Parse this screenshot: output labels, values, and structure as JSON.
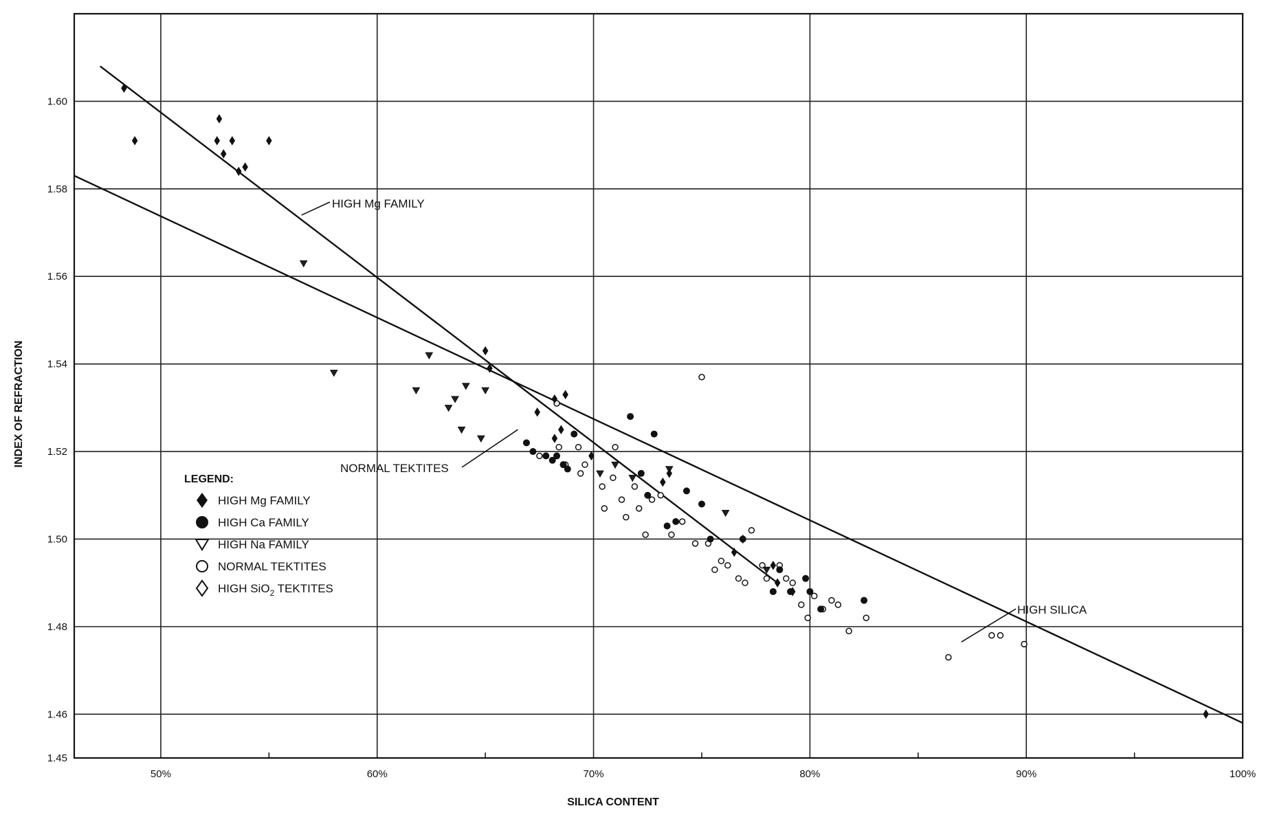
{
  "chart_data": {
    "type": "scatter",
    "title": "",
    "xlabel": "SILICA CONTENT",
    "ylabel": "INDEX OF REFRACTION",
    "xlim": [
      46,
      100
    ],
    "ylim": [
      1.45,
      1.62
    ],
    "grid": true,
    "x_ticks": [
      50,
      60,
      70,
      80,
      90,
      100
    ],
    "x_tick_labels": [
      "50%",
      "60%",
      "70%",
      "80%",
      "90%",
      "100%"
    ],
    "y_ticks": [
      1.45,
      1.46,
      1.48,
      1.5,
      1.52,
      1.54,
      1.56,
      1.58,
      1.6
    ],
    "y_tick_labels": [
      "1.45",
      "1.46",
      "1.48",
      "1.50",
      "1.52",
      "1.54",
      "1.56",
      "1.58",
      "1.60"
    ],
    "legend": {
      "title": "LEGEND:",
      "placement": "left-lower",
      "entries": [
        {
          "label": "HIGH Mg FAMILY",
          "marker": "filled-diamond"
        },
        {
          "label": "HIGH Ca FAMILY",
          "marker": "filled-circle"
        },
        {
          "label": "HIGH Na FAMILY",
          "marker": "open-triangle-down"
        },
        {
          "label": "NORMAL TEKTITES",
          "marker": "open-circle"
        },
        {
          "label_main": "HIGH SiO",
          "label_sub": "2",
          "label_tail": " TEKTITES",
          "marker": "open-diamond"
        }
      ]
    },
    "lines": [
      {
        "name": "HIGH Mg FAMILY",
        "points": [
          [
            47.2,
            1.608
          ],
          [
            78.5,
            1.49
          ]
        ]
      },
      {
        "name": "NORMAL TEKTITES",
        "points": [
          [
            46,
            1.583
          ],
          [
            100,
            1.458
          ]
        ]
      }
    ],
    "annotations": [
      {
        "text": "HIGH Mg FAMILY",
        "target": [
          56.5,
          1.574
        ],
        "anchor": [
          60,
          1.58
        ]
      },
      {
        "text": "NORMAL TEKTITES",
        "target": [
          66.5,
          1.525
        ],
        "anchor": [
          63,
          1.516
        ]
      },
      {
        "text": "HIGH SILICA",
        "target": [
          87,
          1.4765
        ],
        "anchor": [
          91,
          1.484
        ]
      }
    ],
    "series": [
      {
        "name": "HIGH Mg FAMILY",
        "marker": "filled-diamond",
        "points": [
          [
            48.3,
            1.603
          ],
          [
            48.8,
            1.591
          ],
          [
            52.6,
            1.591
          ],
          [
            52.7,
            1.596
          ],
          [
            52.9,
            1.588
          ],
          [
            53.3,
            1.591
          ],
          [
            53.6,
            1.584
          ],
          [
            53.9,
            1.585
          ],
          [
            55.0,
            1.591
          ],
          [
            65.0,
            1.543
          ],
          [
            65.2,
            1.539
          ],
          [
            67.4,
            1.529
          ],
          [
            68.2,
            1.532
          ],
          [
            68.2,
            1.523
          ],
          [
            68.5,
            1.525
          ],
          [
            68.7,
            1.533
          ],
          [
            69.9,
            1.519
          ],
          [
            73.2,
            1.513
          ],
          [
            73.5,
            1.515
          ],
          [
            76.5,
            1.497
          ],
          [
            76.9,
            1.5
          ],
          [
            78.3,
            1.494
          ],
          [
            78.5,
            1.49
          ],
          [
            79.2,
            1.488
          ],
          [
            98.3,
            1.46
          ]
        ]
      },
      {
        "name": "HIGH Ca FAMILY",
        "marker": "filled-circle",
        "points": [
          [
            66.9,
            1.522
          ],
          [
            67.2,
            1.52
          ],
          [
            67.8,
            1.519
          ],
          [
            68.1,
            1.518
          ],
          [
            68.3,
            1.519
          ],
          [
            68.6,
            1.517
          ],
          [
            68.8,
            1.516
          ],
          [
            69.1,
            1.524
          ],
          [
            71.7,
            1.528
          ],
          [
            72.2,
            1.515
          ],
          [
            72.5,
            1.51
          ],
          [
            72.8,
            1.524
          ],
          [
            73.4,
            1.503
          ],
          [
            73.8,
            1.504
          ],
          [
            74.3,
            1.511
          ],
          [
            75.0,
            1.508
          ],
          [
            75.4,
            1.5
          ],
          [
            76.9,
            1.5
          ],
          [
            78.3,
            1.488
          ],
          [
            78.6,
            1.493
          ],
          [
            79.1,
            1.488
          ],
          [
            79.8,
            1.491
          ],
          [
            80.0,
            1.488
          ],
          [
            80.5,
            1.484
          ],
          [
            82.5,
            1.486
          ]
        ]
      },
      {
        "name": "HIGH Na FAMILY",
        "marker": "open-triangle-down",
        "points": [
          [
            56.6,
            1.563
          ],
          [
            58.0,
            1.538
          ],
          [
            61.8,
            1.534
          ],
          [
            62.4,
            1.542
          ],
          [
            63.3,
            1.53
          ],
          [
            63.6,
            1.532
          ],
          [
            63.9,
            1.525
          ],
          [
            64.1,
            1.535
          ],
          [
            64.8,
            1.523
          ],
          [
            65.0,
            1.534
          ],
          [
            70.3,
            1.515
          ],
          [
            71.0,
            1.517
          ],
          [
            71.8,
            1.514
          ],
          [
            73.5,
            1.516
          ],
          [
            76.1,
            1.506
          ],
          [
            78.0,
            1.493
          ]
        ]
      },
      {
        "name": "NORMAL TEKTITES",
        "marker": "open-circle",
        "points": [
          [
            67.5,
            1.519
          ],
          [
            68.3,
            1.531
          ],
          [
            68.4,
            1.521
          ],
          [
            68.7,
            1.517
          ],
          [
            69.3,
            1.521
          ],
          [
            69.4,
            1.515
          ],
          [
            69.6,
            1.517
          ],
          [
            70.4,
            1.512
          ],
          [
            70.5,
            1.507
          ],
          [
            70.9,
            1.514
          ],
          [
            71.0,
            1.521
          ],
          [
            71.3,
            1.509
          ],
          [
            71.5,
            1.505
          ],
          [
            71.9,
            1.512
          ],
          [
            72.1,
            1.507
          ],
          [
            72.4,
            1.501
          ],
          [
            72.7,
            1.509
          ],
          [
            73.1,
            1.51
          ],
          [
            73.6,
            1.501
          ],
          [
            74.1,
            1.504
          ],
          [
            74.7,
            1.499
          ],
          [
            75.0,
            1.537
          ],
          [
            75.3,
            1.499
          ],
          [
            75.6,
            1.493
          ],
          [
            75.9,
            1.495
          ],
          [
            76.2,
            1.494
          ],
          [
            76.7,
            1.491
          ],
          [
            77.0,
            1.49
          ],
          [
            77.3,
            1.502
          ],
          [
            77.8,
            1.494
          ],
          [
            78.0,
            1.491
          ],
          [
            78.6,
            1.494
          ],
          [
            78.9,
            1.491
          ],
          [
            79.2,
            1.49
          ],
          [
            79.6,
            1.485
          ],
          [
            79.9,
            1.482
          ],
          [
            80.2,
            1.487
          ],
          [
            80.6,
            1.484
          ],
          [
            81.0,
            1.486
          ],
          [
            81.3,
            1.485
          ],
          [
            81.8,
            1.479
          ],
          [
            82.6,
            1.482
          ],
          [
            86.4,
            1.473
          ],
          [
            88.4,
            1.478
          ],
          [
            88.8,
            1.478
          ],
          [
            89.9,
            1.476
          ]
        ]
      },
      {
        "name": "HIGH SiO2 TEKTITES",
        "marker": "open-diamond",
        "points": []
      }
    ]
  }
}
